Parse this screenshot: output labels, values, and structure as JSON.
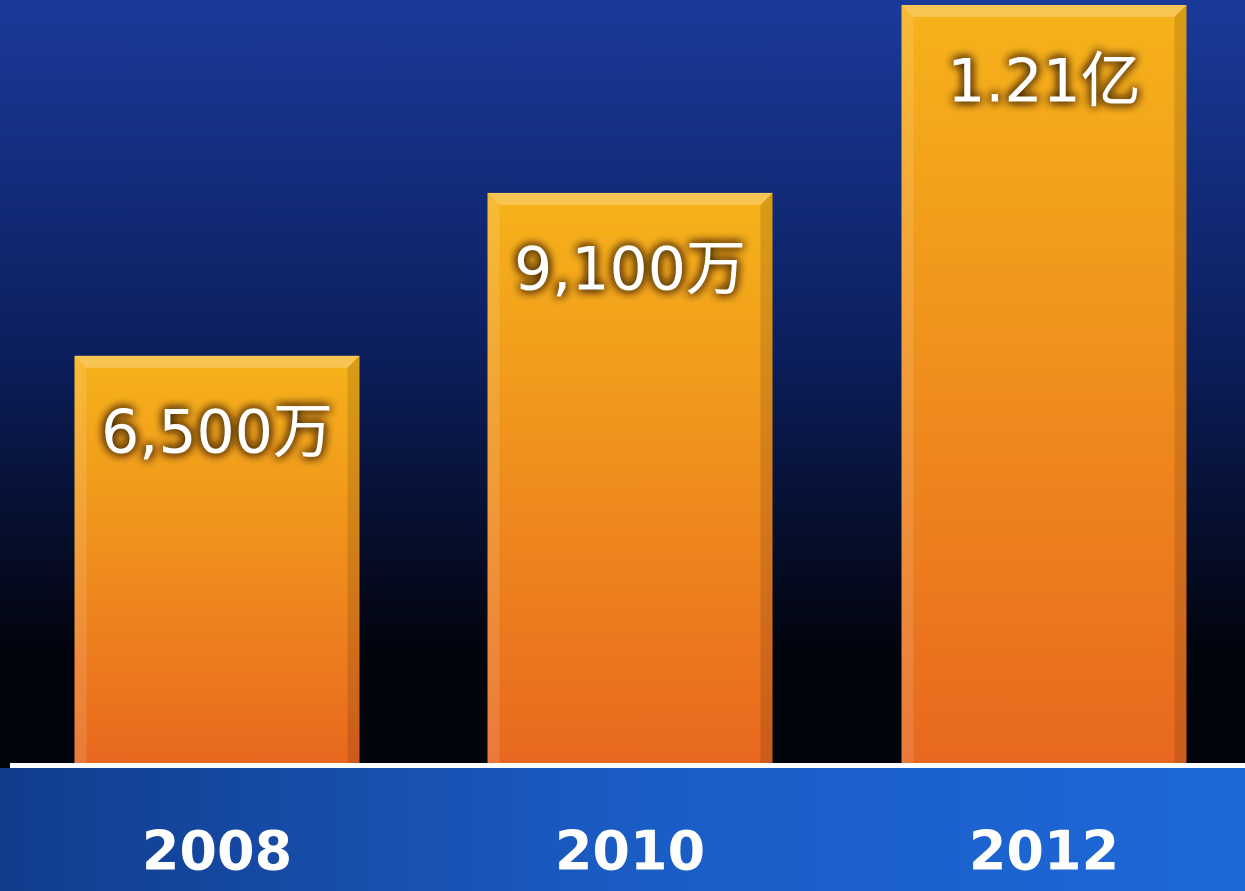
{
  "chart_data": {
    "type": "bar",
    "categories": [
      "2008",
      "2010",
      "2012"
    ],
    "values": [
      65000000,
      91000000,
      121000000
    ],
    "value_labels": [
      "6,500万",
      "9,100万",
      "1.21亿"
    ],
    "color": [
      "#f6b31a",
      "#e8681f"
    ]
  }
}
